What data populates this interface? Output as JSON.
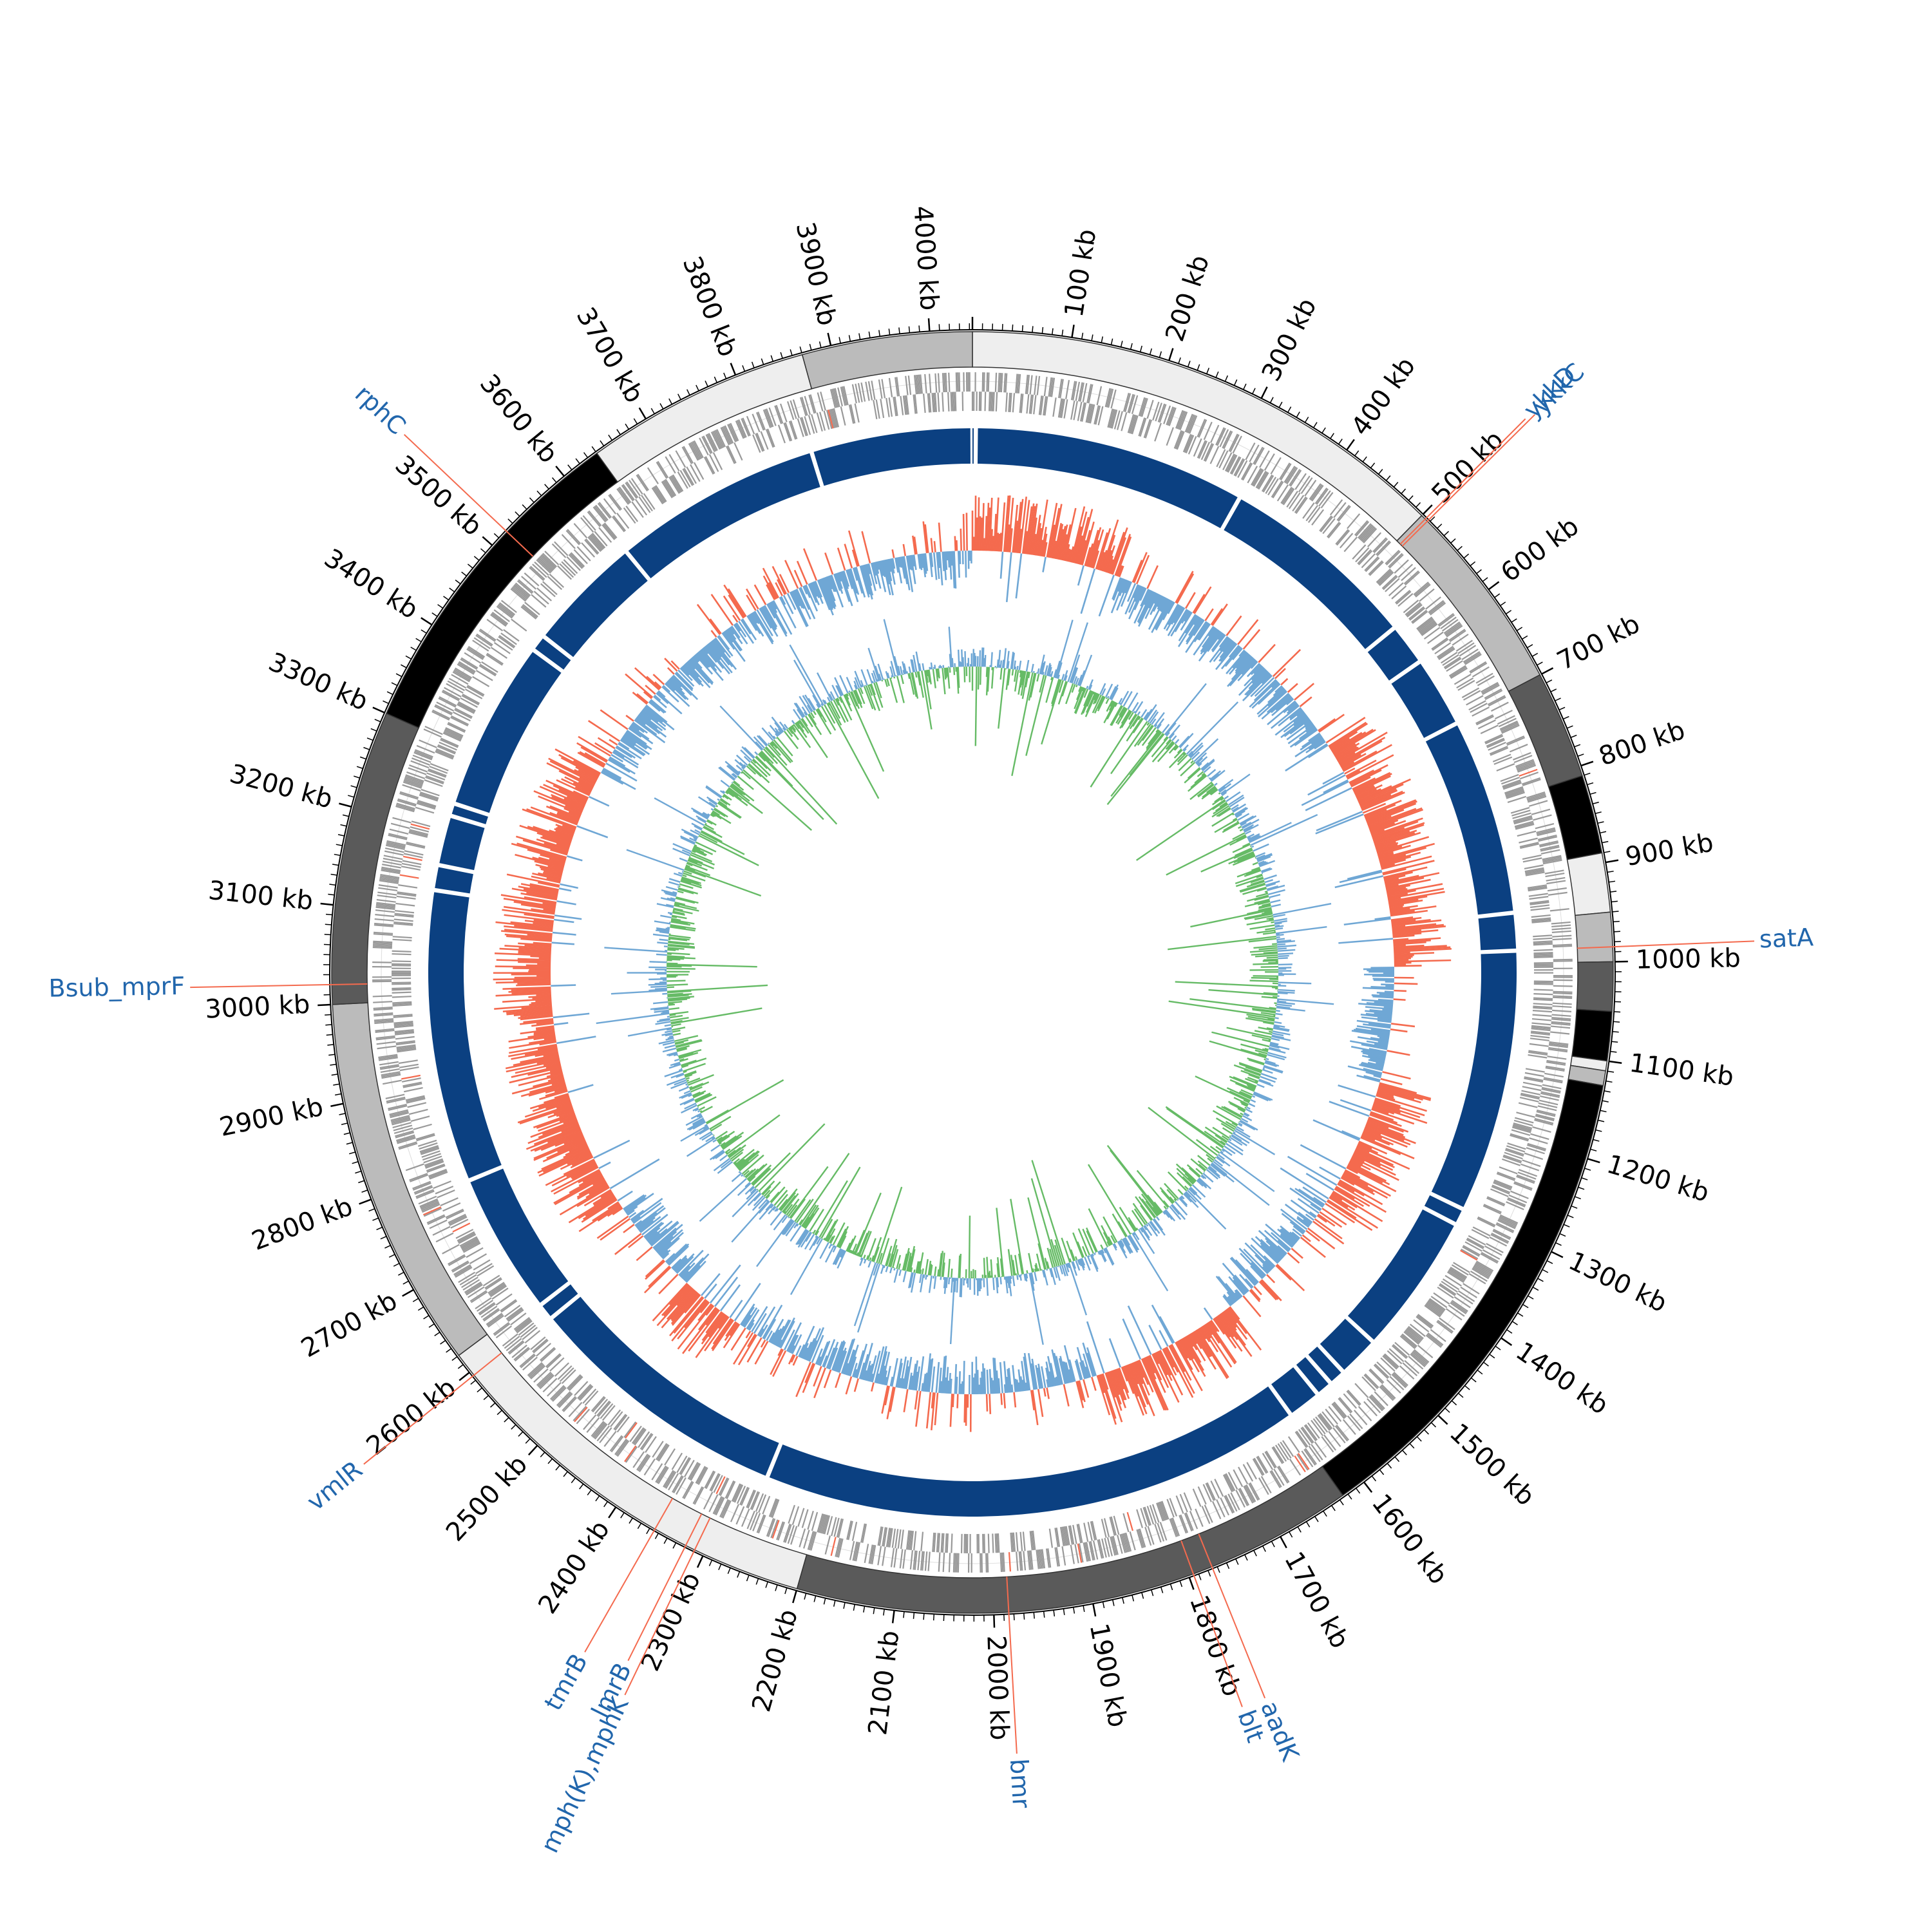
{
  "map": {
    "genome_length_kb": 4043,
    "tick_label_unit": "kb",
    "tick_labels": [
      "100 kb",
      "200 kb",
      "300 kb",
      "400 kb",
      "500 kb",
      "600 kb",
      "700 kb",
      "800 kb",
      "900 kb",
      "1000 kb",
      "1100 kb",
      "1200 kb",
      "1300 kb",
      "1400 kb",
      "1500 kb",
      "1600 kb",
      "1700 kb",
      "1800 kb",
      "1900 kb",
      "2000 kb",
      "2100 kb",
      "2200 kb",
      "2300 kb",
      "2400 kb",
      "2500 kb",
      "2600 kb",
      "2700 kb",
      "2800 kb",
      "2900 kb",
      "3000 kb",
      "3100 kb",
      "3200 kb",
      "3300 kb",
      "3400 kb",
      "3500 kb",
      "3600 kb",
      "3700 kb",
      "3800 kb",
      "3900 kb",
      "4000 kb"
    ],
    "contig_segments_kb": [
      {
        "start": 0,
        "end": 500,
        "shade": "#eeeeee"
      },
      {
        "start": 500,
        "end": 700,
        "shade": "#bbbbbb"
      },
      {
        "start": 700,
        "end": 810,
        "shade": "#5a5a5a"
      },
      {
        "start": 810,
        "end": 890,
        "shade": "#000000"
      },
      {
        "start": 890,
        "end": 950,
        "shade": "#eeeeee"
      },
      {
        "start": 950,
        "end": 1000,
        "shade": "#bbbbbb"
      },
      {
        "start": 1000,
        "end": 1050,
        "shade": "#5a5a5a"
      },
      {
        "start": 1050,
        "end": 1100,
        "shade": "#000000"
      },
      {
        "start": 1100,
        "end": 1110,
        "shade": "#eeeeee"
      },
      {
        "start": 1110,
        "end": 1125,
        "shade": "#bbbbbb"
      },
      {
        "start": 1125,
        "end": 1625,
        "shade": "#000000"
      },
      {
        "start": 1625,
        "end": 2200,
        "shade": "#5a5a5a"
      },
      {
        "start": 2200,
        "end": 2620,
        "shade": "#eeeeee"
      },
      {
        "start": 2620,
        "end": 3000,
        "shade": "#bbbbbb"
      },
      {
        "start": 3000,
        "end": 3300,
        "shade": "#5a5a5a"
      },
      {
        "start": 3300,
        "end": 3640,
        "shade": "#000000"
      },
      {
        "start": 3640,
        "end": 3870,
        "shade": "#eeeeee"
      },
      {
        "start": 3870,
        "end": 4043,
        "shade": "#bbbbbb"
      }
    ],
    "blast_gaps_kb": [
      4,
      330,
      570,
      620,
      705,
      940,
      985,
      1300,
      1320,
      1490,
      1540,
      1560,
      1580,
      1620,
      2270,
      2590,
      2610,
      2780,
      3130,
      3160,
      3220,
      3235,
      3440,
      3460,
      3600,
      3600,
      3850
    ],
    "resistance_genes": [
      {
        "name": "ykkD",
        "position_kb": 505
      },
      {
        "name": "ykkC",
        "position_kb": 508
      },
      {
        "name": "satA",
        "position_kb": 985
      },
      {
        "name": "aadK",
        "position_kb": 1775
      },
      {
        "name": "blt",
        "position_kb": 1795
      },
      {
        "name": "bmr",
        "position_kb": 1985
      },
      {
        "name": "mph(K),mphK",
        "position_kb": 2310
      },
      {
        "name": "lmrB",
        "position_kb": 2320
      },
      {
        "name": "tmrB",
        "position_kb": 2355
      },
      {
        "name": "vmlR",
        "position_kb": 2595
      },
      {
        "name": "Bsub_mprF",
        "position_kb": 3020
      },
      {
        "name": "rphC",
        "position_kb": 3520
      }
    ],
    "colors": {
      "blast_ring": "#0b4081",
      "gc_content_above": "#6fa7d5",
      "gc_content_below": "#f46a4e",
      "gc_skew_positive": "#6fa7d5",
      "gc_skew_negative": "#66bb66",
      "cds_marks": "#999999",
      "gene_label": "#2166ac",
      "leader_line": "#f46a4e"
    }
  }
}
